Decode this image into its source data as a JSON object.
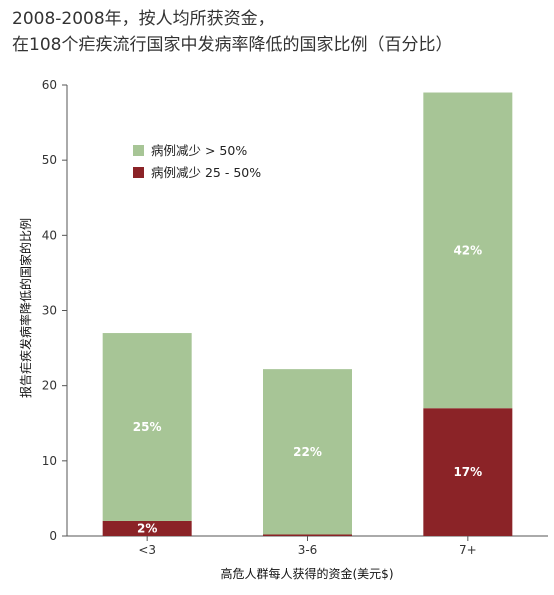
{
  "chart_data": {
    "type": "bar",
    "stacked": true,
    "title_lines": [
      "2008-2008年，按人均所获资金，",
      "在108个疟疾流行国家中发病率降低的国家比例（百分比）"
    ],
    "xlabel": "高危人群每人获得的资金(美元$)",
    "ylabel": "报告疟疾发病率降低的国家的比例",
    "categories": [
      "<3",
      "3-6",
      "7+"
    ],
    "ylim": [
      0,
      60
    ],
    "yticks": [
      0,
      10,
      20,
      30,
      40,
      50,
      60
    ],
    "grid": false,
    "legend_position": "top-left",
    "series": [
      {
        "name": "病例减少 25 - 50%",
        "color": "#8b2327",
        "values": [
          2,
          0.2,
          17
        ],
        "labels": [
          "2%",
          "",
          "17%"
        ]
      },
      {
        "name": "病例减少 > 50%",
        "color": "#a7c596",
        "values": [
          25,
          22,
          42
        ],
        "labels": [
          "25%",
          "22%",
          "42%"
        ]
      }
    ],
    "legend": [
      {
        "name": "病例减少 > 50%",
        "color": "#a7c596"
      },
      {
        "name": "病例减少 25 - 50%",
        "color": "#8b2327"
      }
    ]
  }
}
